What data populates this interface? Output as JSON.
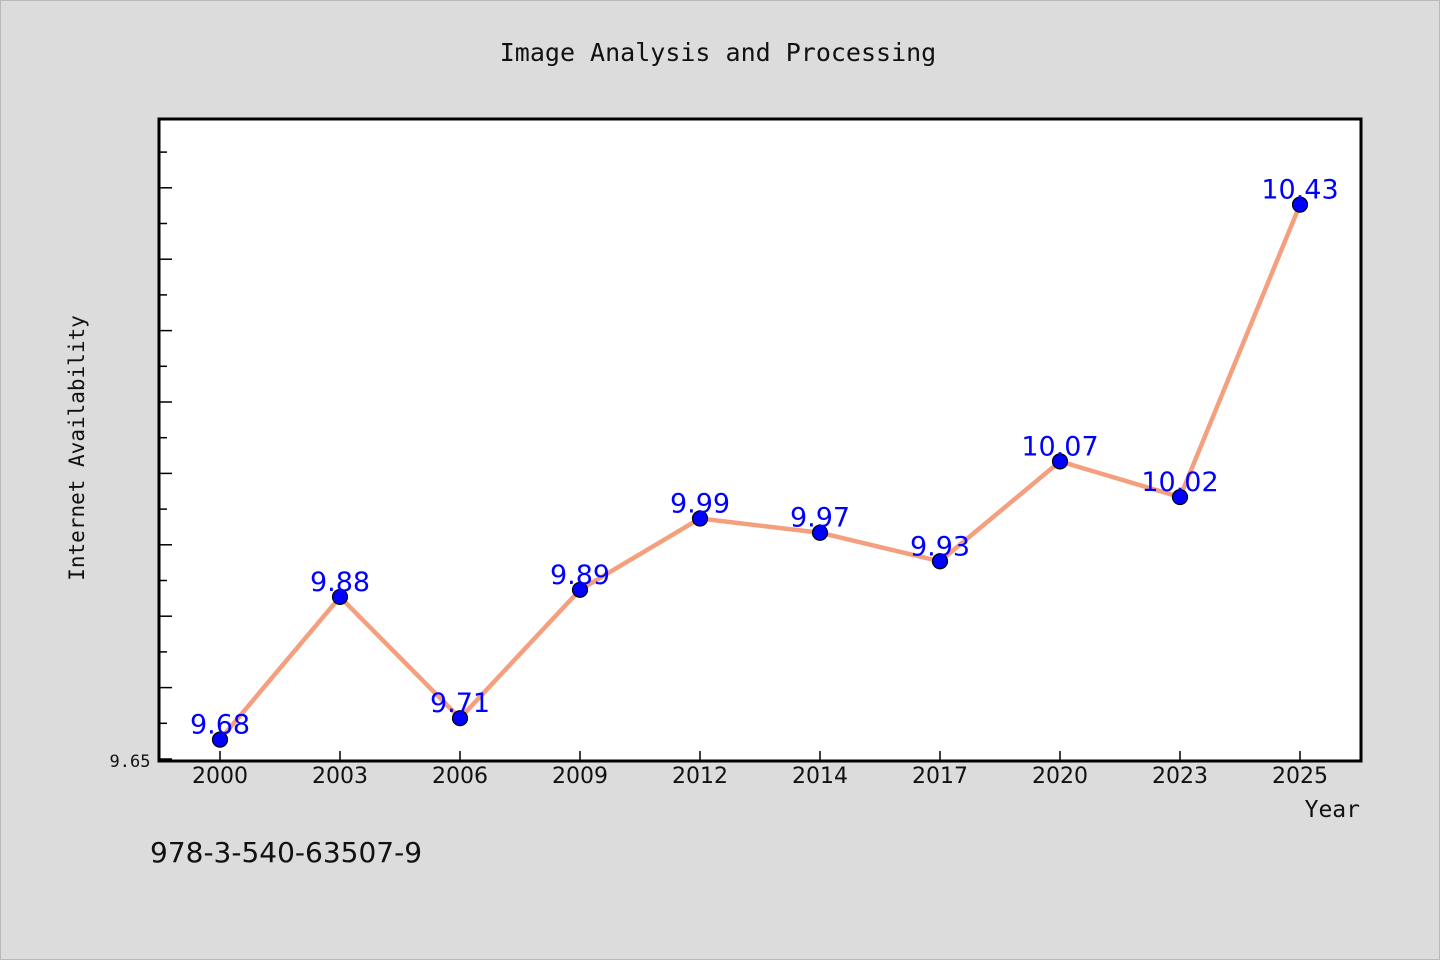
{
  "chart_data": {
    "type": "line",
    "title": "Image Analysis and Processing",
    "xlabel": "Year",
    "ylabel": "Internet Availability",
    "categories": [
      "2000",
      "2003",
      "2006",
      "2009",
      "2012",
      "2014",
      "2017",
      "2020",
      "2023",
      "2025"
    ],
    "series": [
      {
        "values": [
          9.68,
          9.88,
          9.71,
          9.89,
          9.99,
          9.97,
          9.93,
          10.07,
          10.02,
          10.43
        ]
      }
    ],
    "data_labels": [
      "9.68",
      "9.88",
      "9.71",
      "9.89",
      "9.99",
      "9.97",
      "9.93",
      "10.07",
      "10.02",
      "10.43"
    ],
    "ylim": [
      9.65,
      10.55
    ],
    "y_tick_label": "9.65",
    "grid": false,
    "line_color": "#f4a07e",
    "marker_color": "#0000ff",
    "label_color": "#0000ff"
  },
  "footer_text": "978-3-540-63507-9",
  "colors": {
    "background": "#dcdcdc",
    "plot_background": "#ffffff"
  }
}
